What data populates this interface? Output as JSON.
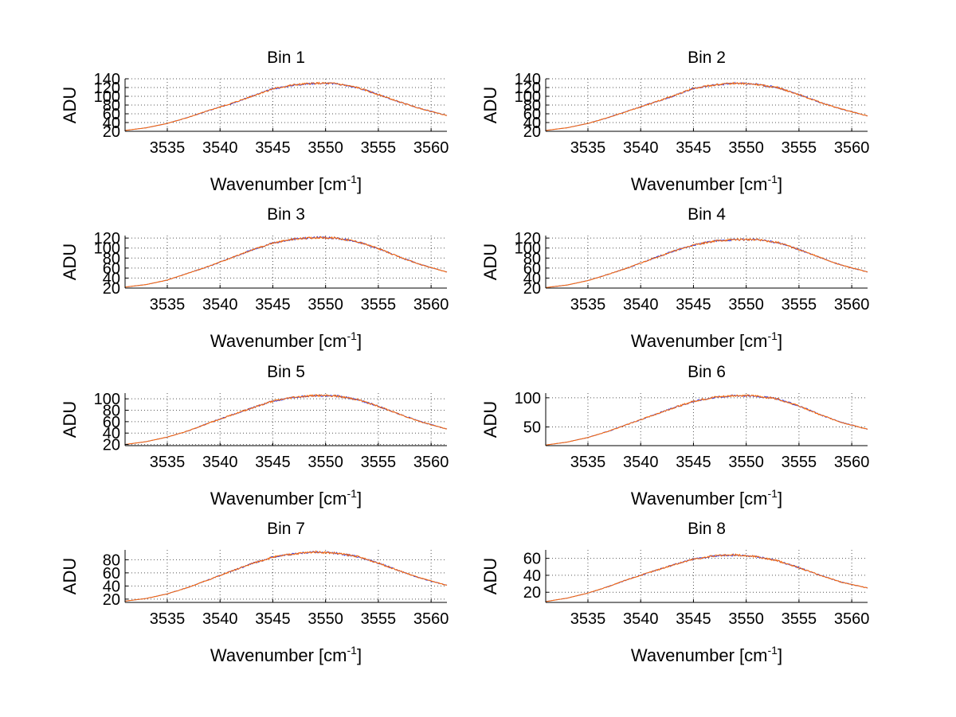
{
  "colors": {
    "series_blue": "#3d3dd8",
    "series_orange": "#ff6a00",
    "grid": "#555555",
    "axis": "#000000"
  },
  "chart_data": [
    {
      "type": "line",
      "title": "Bin 1",
      "xlabel": "Wavenumber [cm",
      "xlabel_sup": "-1",
      "xlabel_close": "]",
      "ylabel": "ADU",
      "xlim": [
        3531,
        3561.5
      ],
      "ylim": [
        20,
        140
      ],
      "xticks": [
        3535,
        3540,
        3545,
        3550,
        3555,
        3560
      ],
      "yticks": [
        20,
        40,
        60,
        80,
        100,
        120,
        140
      ],
      "ytick_labels": [
        "20",
        "40",
        "60",
        "80",
        "100",
        "120",
        "140"
      ],
      "grid": true,
      "series": [
        {
          "color": "blue",
          "x": [
            3531,
            3533,
            3535,
            3537,
            3539,
            3541,
            3543,
            3545,
            3547,
            3549,
            3551,
            3553,
            3555,
            3557,
            3559,
            3561.5
          ],
          "y": [
            22,
            28,
            38,
            52,
            68,
            83,
            100,
            117,
            126,
            130,
            129,
            120,
            104,
            87,
            72,
            56
          ]
        },
        {
          "color": "orange",
          "x": [
            3531,
            3533,
            3535,
            3537,
            3539,
            3541,
            3543,
            3545,
            3547,
            3549,
            3551,
            3553,
            3555,
            3557,
            3559,
            3561.5
          ],
          "y": [
            22,
            28,
            38,
            52,
            68,
            83,
            100,
            117,
            126,
            130,
            129,
            120,
            104,
            87,
            72,
            56
          ]
        }
      ]
    },
    {
      "type": "line",
      "title": "Bin 2",
      "xlabel": "Wavenumber [cm",
      "xlabel_sup": "-1",
      "xlabel_close": "]",
      "ylabel": "ADU",
      "xlim": [
        3531,
        3561.5
      ],
      "ylim": [
        20,
        140
      ],
      "xticks": [
        3535,
        3540,
        3545,
        3550,
        3555,
        3560
      ],
      "yticks": [
        20,
        40,
        60,
        80,
        100,
        120,
        140
      ],
      "ytick_labels": [
        "20",
        "40",
        "60",
        "80",
        "100",
        "120",
        "140"
      ],
      "grid": true,
      "series": [
        {
          "color": "blue",
          "x": [
            3531,
            3533,
            3535,
            3537,
            3539,
            3541,
            3543,
            3545,
            3547,
            3549,
            3551,
            3553,
            3555,
            3557,
            3559,
            3561.5
          ],
          "y": [
            22,
            28,
            38,
            52,
            68,
            84,
            100,
            118,
            126,
            130,
            127,
            120,
            104,
            86,
            71,
            55
          ]
        },
        {
          "color": "orange",
          "x": [
            3531,
            3533,
            3535,
            3537,
            3539,
            3541,
            3543,
            3545,
            3547,
            3549,
            3551,
            3553,
            3555,
            3557,
            3559,
            3561.5
          ],
          "y": [
            22,
            28,
            38,
            52,
            68,
            84,
            100,
            118,
            126,
            130,
            127,
            120,
            104,
            86,
            71,
            55
          ]
        }
      ]
    },
    {
      "type": "line",
      "title": "Bin 3",
      "xlabel": "Wavenumber [cm",
      "xlabel_sup": "-1",
      "xlabel_close": "]",
      "ylabel": "ADU",
      "xlim": [
        3531,
        3561.5
      ],
      "ylim": [
        20,
        125
      ],
      "xticks": [
        3535,
        3540,
        3545,
        3550,
        3555,
        3560
      ],
      "yticks": [
        20,
        40,
        60,
        80,
        100,
        120
      ],
      "ytick_labels": [
        "20",
        "40",
        "60",
        "80",
        "100",
        "120"
      ],
      "grid": true,
      "series": [
        {
          "color": "blue",
          "x": [
            3531,
            3533,
            3535,
            3537,
            3539,
            3541,
            3543,
            3545,
            3547,
            3549,
            3551,
            3553,
            3555,
            3557,
            3559,
            3561.5
          ],
          "y": [
            22,
            27,
            36,
            50,
            64,
            80,
            96,
            110,
            118,
            121,
            120,
            113,
            99,
            82,
            67,
            52
          ]
        },
        {
          "color": "orange",
          "x": [
            3531,
            3533,
            3535,
            3537,
            3539,
            3541,
            3543,
            3545,
            3547,
            3549,
            3551,
            3553,
            3555,
            3557,
            3559,
            3561.5
          ],
          "y": [
            22,
            27,
            36,
            50,
            64,
            80,
            96,
            110,
            118,
            121,
            120,
            113,
            99,
            82,
            67,
            52
          ]
        }
      ]
    },
    {
      "type": "line",
      "title": "Bin 4",
      "xlabel": "Wavenumber [cm",
      "xlabel_sup": "-1",
      "xlabel_close": "]",
      "ylabel": "ADU",
      "xlim": [
        3531,
        3561.5
      ],
      "ylim": [
        20,
        125
      ],
      "xticks": [
        3535,
        3540,
        3545,
        3550,
        3555,
        3560
      ],
      "yticks": [
        20,
        40,
        60,
        80,
        100,
        120
      ],
      "ytick_labels": [
        "20",
        "40",
        "60",
        "80",
        "100",
        "120"
      ],
      "grid": true,
      "series": [
        {
          "color": "blue",
          "x": [
            3531,
            3533,
            3535,
            3537,
            3539,
            3541,
            3543,
            3545,
            3547,
            3549,
            3551,
            3553,
            3555,
            3557,
            3559,
            3561.5
          ],
          "y": [
            21,
            26,
            35,
            48,
            62,
            78,
            93,
            106,
            114,
            117,
            117,
            111,
            97,
            81,
            66,
            52
          ]
        },
        {
          "color": "orange",
          "x": [
            3531,
            3533,
            3535,
            3537,
            3539,
            3541,
            3543,
            3545,
            3547,
            3549,
            3551,
            3553,
            3555,
            3557,
            3559,
            3561.5
          ],
          "y": [
            21,
            26,
            35,
            48,
            62,
            78,
            93,
            106,
            114,
            117,
            117,
            111,
            97,
            81,
            66,
            52
          ]
        }
      ]
    },
    {
      "type": "line",
      "title": "Bin 5",
      "xlabel": "Wavenumber [cm",
      "xlabel_sup": "-1",
      "xlabel_close": "]",
      "ylabel": "ADU",
      "xlim": [
        3531,
        3561.5
      ],
      "ylim": [
        18,
        110
      ],
      "xticks": [
        3535,
        3540,
        3545,
        3550,
        3555,
        3560
      ],
      "yticks": [
        20,
        40,
        60,
        80,
        100
      ],
      "ytick_labels": [
        "20",
        "40",
        "60",
        "80",
        "100"
      ],
      "grid": true,
      "series": [
        {
          "color": "blue",
          "x": [
            3531,
            3533,
            3535,
            3537,
            3539,
            3541,
            3543,
            3545,
            3547,
            3549,
            3551,
            3553,
            3555,
            3557,
            3559,
            3561.5
          ],
          "y": [
            20,
            25,
            33,
            44,
            58,
            71,
            84,
            96,
            103,
            106,
            105,
            99,
            87,
            73,
            60,
            47
          ]
        },
        {
          "color": "orange",
          "x": [
            3531,
            3533,
            3535,
            3537,
            3539,
            3541,
            3543,
            3545,
            3547,
            3549,
            3551,
            3553,
            3555,
            3557,
            3559,
            3561.5
          ],
          "y": [
            20,
            25,
            33,
            44,
            58,
            71,
            84,
            96,
            103,
            106,
            105,
            99,
            87,
            73,
            60,
            47
          ]
        }
      ]
    },
    {
      "type": "line",
      "title": "Bin 6",
      "xlabel": "Wavenumber [cm",
      "xlabel_sup": "-1",
      "xlabel_close": "]",
      "ylabel": "ADU",
      "xlim": [
        3531,
        3561.5
      ],
      "ylim": [
        18,
        108
      ],
      "xticks": [
        3535,
        3540,
        3545,
        3550,
        3555,
        3560
      ],
      "yticks": [
        50,
        100
      ],
      "ytick_labels": [
        "50",
        "100"
      ],
      "grid": true,
      "series": [
        {
          "color": "blue",
          "x": [
            3531,
            3533,
            3535,
            3537,
            3539,
            3541,
            3543,
            3545,
            3547,
            3549,
            3551,
            3553,
            3555,
            3557,
            3559,
            3561.5
          ],
          "y": [
            19,
            24,
            32,
            43,
            56,
            69,
            82,
            94,
            101,
            104,
            103,
            98,
            86,
            71,
            58,
            46
          ]
        },
        {
          "color": "orange",
          "x": [
            3531,
            3533,
            3535,
            3537,
            3539,
            3541,
            3543,
            3545,
            3547,
            3549,
            3551,
            3553,
            3555,
            3557,
            3559,
            3561.5
          ],
          "y": [
            19,
            24,
            32,
            43,
            56,
            69,
            82,
            94,
            101,
            104,
            103,
            98,
            86,
            71,
            58,
            46
          ]
        }
      ]
    },
    {
      "type": "line",
      "title": "Bin 7",
      "xlabel": "Wavenumber [cm",
      "xlabel_sup": "-1",
      "xlabel_close": "]",
      "ylabel": "ADU",
      "xlim": [
        3531,
        3561.5
      ],
      "ylim": [
        15,
        95
      ],
      "xticks": [
        3535,
        3540,
        3545,
        3550,
        3555,
        3560
      ],
      "yticks": [
        20,
        40,
        60,
        80
      ],
      "ytick_labels": [
        "20",
        "40",
        "60",
        "80"
      ],
      "grid": true,
      "series": [
        {
          "color": "blue",
          "x": [
            3531,
            3533,
            3535,
            3537,
            3539,
            3541,
            3543,
            3545,
            3547,
            3549,
            3551,
            3553,
            3555,
            3557,
            3559,
            3561.5
          ],
          "y": [
            17,
            21,
            28,
            38,
            50,
            62,
            74,
            84,
            89,
            92,
            90,
            85,
            75,
            63,
            52,
            41
          ]
        },
        {
          "color": "orange",
          "x": [
            3531,
            3533,
            3535,
            3537,
            3539,
            3541,
            3543,
            3545,
            3547,
            3549,
            3551,
            3553,
            3555,
            3557,
            3559,
            3561.5
          ],
          "y": [
            17,
            21,
            28,
            38,
            50,
            62,
            74,
            84,
            89,
            92,
            90,
            85,
            75,
            63,
            52,
            41
          ]
        }
      ]
    },
    {
      "type": "line",
      "title": "Bin 8",
      "xlabel": "Wavenumber [cm",
      "xlabel_sup": "-1",
      "xlabel_close": "]",
      "ylabel": "ADU",
      "xlim": [
        3531,
        3561.5
      ],
      "ylim": [
        8,
        70
      ],
      "xticks": [
        3535,
        3540,
        3545,
        3550,
        3555,
        3560
      ],
      "yticks": [
        20,
        40,
        60
      ],
      "ytick_labels": [
        "20",
        "40",
        "60"
      ],
      "grid": true,
      "series": [
        {
          "color": "blue",
          "x": [
            3531,
            3533,
            3535,
            3537,
            3539,
            3541,
            3543,
            3545,
            3547,
            3549,
            3551,
            3553,
            3555,
            3557,
            3559,
            3561.5
          ],
          "y": [
            9,
            13,
            19,
            27,
            36,
            44,
            52,
            59,
            63,
            64,
            62,
            57,
            49,
            40,
            32,
            25
          ]
        },
        {
          "color": "orange",
          "x": [
            3531,
            3533,
            3535,
            3537,
            3539,
            3541,
            3543,
            3545,
            3547,
            3549,
            3551,
            3553,
            3555,
            3557,
            3559,
            3561.5
          ],
          "y": [
            9,
            13,
            19,
            27,
            36,
            44,
            52,
            59,
            63,
            64,
            62,
            57,
            49,
            40,
            32,
            25
          ]
        }
      ]
    }
  ]
}
